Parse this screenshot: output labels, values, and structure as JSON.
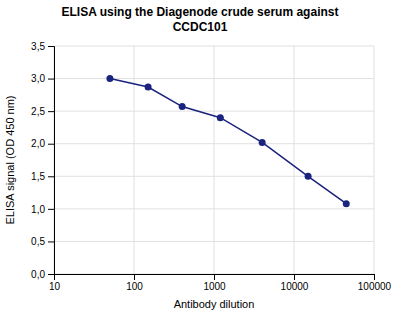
{
  "chart_data": {
    "type": "line",
    "title": "ELISA using the Diagenode crude serum against\nCCDC101",
    "xlabel": "Antibody dilution",
    "ylabel": "ELISA signal (OD 450 nm)",
    "x": [
      50,
      150,
      400,
      1200,
      4000,
      15000,
      45000
    ],
    "values": [
      3.0,
      2.87,
      2.57,
      2.4,
      2.02,
      1.5,
      1.08
    ],
    "color": "#1a237e",
    "marker": "circle",
    "log": "x",
    "xlim": [
      10,
      100000
    ],
    "xticks": [
      10,
      100,
      1000,
      10000,
      100000
    ],
    "ylim": [
      0.0,
      3.5
    ],
    "yticks": [
      {
        "value": 0.0,
        "label": "0,0"
      },
      {
        "value": 0.5,
        "label": "0,5"
      },
      {
        "value": 1.0,
        "label": "1,0"
      },
      {
        "value": 1.5,
        "label": "1,5"
      },
      {
        "value": 2.0,
        "label": "2,0"
      },
      {
        "value": 2.5,
        "label": "2,5"
      },
      {
        "value": 3.0,
        "label": "3,0"
      },
      {
        "value": 3.5,
        "label": "3,5"
      }
    ],
    "grid": true
  }
}
